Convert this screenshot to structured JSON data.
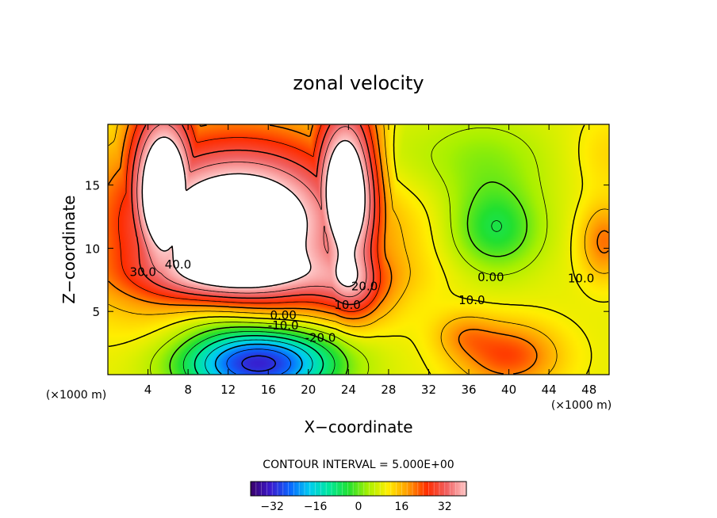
{
  "chart_data": {
    "type": "heatmap",
    "title": "zonal velocity",
    "xlabel": "X−coordinate",
    "ylabel": "Z−coordinate",
    "x_units_left": "(×1000 m)",
    "x_units_right": "(×1000 m)",
    "xlim": [
      0,
      50
    ],
    "ylim": [
      0,
      19.8
    ],
    "x_ticks": [
      4,
      8,
      12,
      16,
      20,
      24,
      28,
      32,
      36,
      40,
      44,
      48
    ],
    "y_ticks": [
      5,
      10,
      15
    ],
    "contour_interval_text": "CONTOUR INTERVAL = 5.000E+00",
    "contour_labels": [
      {
        "text": "40.0",
        "x": 7.0,
        "y": 8.7
      },
      {
        "text": "30.0",
        "x": 3.5,
        "y": 8.1
      },
      {
        "text": "20.0",
        "x": 25.6,
        "y": 7.0
      },
      {
        "text": "10.0",
        "x": 23.9,
        "y": 5.5
      },
      {
        "text": "0.00",
        "x": 17.5,
        "y": 4.7
      },
      {
        "text": "-10.0",
        "x": 17.5,
        "y": 3.9
      },
      {
        "text": "-20.0",
        "x": 21.2,
        "y": 2.9
      },
      {
        "text": "0.00",
        "x": 38.2,
        "y": 7.7
      },
      {
        "text": "10.0",
        "x": 36.3,
        "y": 5.9
      },
      {
        "text": "10.0",
        "x": 47.2,
        "y": 7.6
      }
    ],
    "field_features": [
      {
        "name": "jet-upper-left",
        "x": 13.0,
        "y": 15.0,
        "value": 45
      },
      {
        "name": "jet-lower-core",
        "x": 15.0,
        "y": 1.0,
        "value": -35
      },
      {
        "name": "weak-negative-eddy",
        "x": 38.7,
        "y": 11.5,
        "value": -7
      },
      {
        "name": "positive-lower-right",
        "x": 40.0,
        "y": 1.5,
        "value": 25
      },
      {
        "name": "positive-right-edge",
        "x": 49.5,
        "y": 10.5,
        "value": 22
      }
    ],
    "colorbar": {
      "range": [
        -40,
        40
      ],
      "ticks": [
        -32,
        -16,
        0,
        16,
        32
      ],
      "colormap": [
        "#3a006a",
        "#3b1acc",
        "#0a66ff",
        "#00ccf0",
        "#00e89a",
        "#22e030",
        "#a8f000",
        "#ffee00",
        "#ff9d00",
        "#ff2d00",
        "#f06060",
        "#ffc8c8"
      ]
    }
  }
}
